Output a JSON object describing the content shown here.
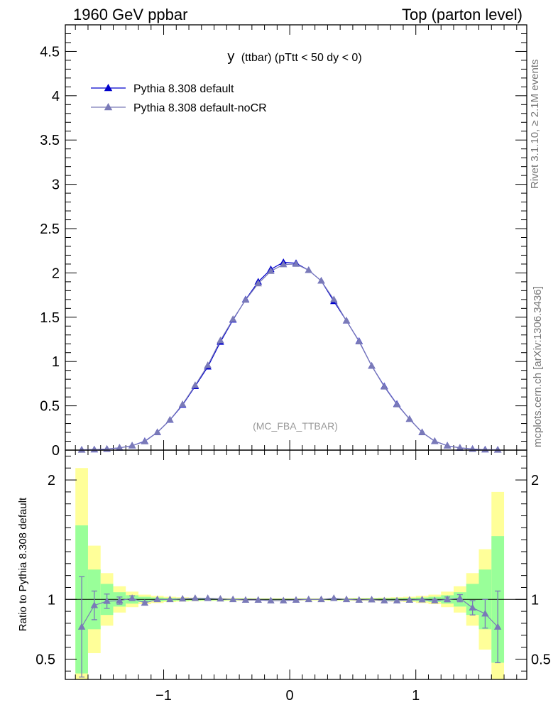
{
  "header": {
    "left": "1960 GeV ppbar",
    "right": "Top (parton level)"
  },
  "side_labels": {
    "rivet": "Rivet 3.1.10, ≥ 2.1M events",
    "mcplots": "mcplots.cern.ch [arXiv:1306.3436]"
  },
  "chart_data": [
    {
      "type": "line",
      "title": "y (ttbar) (pTtt < 50 dy < 0)",
      "title_main": "y",
      "title_rest": "(ttbar) (pTtt < 50 dy < 0)",
      "watermark": "(MC_FBA_TTBAR)",
      "xlim": [
        -1.78,
        1.88
      ],
      "ylim": [
        0,
        4.8
      ],
      "yticks": [
        0,
        0.5,
        1,
        1.5,
        2,
        2.5,
        3,
        3.5,
        4,
        4.5
      ],
      "ytick_labels": [
        "0",
        "0.5",
        "1",
        "1.5",
        "2",
        "2.5",
        "3",
        "3.5",
        "4",
        "4.5"
      ],
      "x": [
        -1.65,
        -1.55,
        -1.45,
        -1.35,
        -1.25,
        -1.15,
        -1.05,
        -0.95,
        -0.85,
        -0.75,
        -0.65,
        -0.55,
        -0.45,
        -0.35,
        -0.25,
        -0.15,
        -0.05,
        0.05,
        0.15,
        0.25,
        0.35,
        0.45,
        0.55,
        0.65,
        0.75,
        0.85,
        0.95,
        1.05,
        1.15,
        1.25,
        1.35,
        1.45,
        1.55,
        1.65
      ],
      "legend": "top-left",
      "series": [
        {
          "name": "Pythia 8.308 default",
          "color": "#0000cc",
          "values": [
            0.003,
            0.006,
            0.012,
            0.026,
            0.05,
            0.1,
            0.2,
            0.34,
            0.51,
            0.72,
            0.94,
            1.22,
            1.47,
            1.7,
            1.9,
            2.04,
            2.12,
            2.11,
            2.03,
            1.91,
            1.68,
            1.46,
            1.23,
            0.95,
            0.72,
            0.52,
            0.35,
            0.2,
            0.1,
            0.05,
            0.025,
            0.012,
            0.006,
            0.003
          ]
        },
        {
          "name": "Pythia 8.308 default-noCR",
          "color": "#7a7ab8",
          "values": [
            0.0023,
            0.0057,
            0.0118,
            0.0265,
            0.0505,
            0.097,
            0.2,
            0.341,
            0.517,
            0.732,
            0.957,
            1.237,
            1.477,
            1.695,
            1.88,
            2.02,
            2.095,
            2.1,
            2.03,
            1.91,
            1.7,
            1.46,
            1.225,
            0.95,
            0.715,
            0.515,
            0.35,
            0.2,
            0.1,
            0.05,
            0.025,
            0.0113,
            0.0053,
            0.0023
          ]
        }
      ]
    },
    {
      "type": "line",
      "ylabel": "Ratio to Pythia 8.308 default",
      "xlim": [
        -1.78,
        1.88
      ],
      "ylim": [
        0.33,
        2.25
      ],
      "xticks": [
        -1,
        0,
        1
      ],
      "xtick_labels": [
        "−1",
        "0",
        "1"
      ],
      "yticks": [
        0.5,
        1,
        2
      ],
      "ytick_labels": [
        "0.5",
        "1",
        "2"
      ],
      "x": [
        -1.65,
        -1.55,
        -1.45,
        -1.35,
        -1.25,
        -1.15,
        -1.05,
        -0.95,
        -0.85,
        -0.75,
        -0.65,
        -0.55,
        -0.45,
        -0.35,
        -0.25,
        -0.15,
        -0.05,
        0.05,
        0.15,
        0.25,
        0.35,
        0.45,
        0.55,
        0.65,
        0.75,
        0.85,
        0.95,
        1.05,
        1.15,
        1.25,
        1.35,
        1.45,
        1.55,
        1.65
      ],
      "band_colors": {
        "inner": "#99ff99",
        "outer": "#ffff99"
      },
      "band_inner": [
        0.62,
        0.25,
        0.13,
        0.06,
        0.035,
        0.022,
        0.016,
        0.012,
        0.01,
        0.009,
        0.008,
        0.007,
        0.006,
        0.006,
        0.005,
        0.005,
        0.005,
        0.005,
        0.005,
        0.005,
        0.006,
        0.006,
        0.007,
        0.008,
        0.009,
        0.01,
        0.012,
        0.016,
        0.022,
        0.035,
        0.06,
        0.13,
        0.25,
        0.53
      ],
      "band_outer": [
        1.1,
        0.45,
        0.22,
        0.11,
        0.065,
        0.04,
        0.03,
        0.022,
        0.018,
        0.015,
        0.013,
        0.012,
        0.011,
        0.01,
        0.009,
        0.009,
        0.009,
        0.009,
        0.009,
        0.009,
        0.01,
        0.011,
        0.012,
        0.013,
        0.015,
        0.018,
        0.022,
        0.03,
        0.04,
        0.065,
        0.11,
        0.22,
        0.42,
        0.9
      ],
      "series": [
        {
          "name": "Pythia 8.308 default-noCR",
          "color": "#7a7ab8",
          "values": [
            0.77,
            0.95,
            0.985,
            0.99,
            1.01,
            0.97,
            1.0,
            1.0,
            1.005,
            1.01,
            1.01,
            1.005,
            1.0,
            0.995,
            0.995,
            0.99,
            0.99,
            0.995,
            1.0,
            1.0,
            1.01,
            1.0,
            0.995,
            0.998,
            0.99,
            0.99,
            0.995,
            0.998,
            0.99,
            1.0,
            1.01,
            0.93,
            0.88,
            0.77
          ],
          "errors": [
            0.42,
            0.12,
            0.06,
            0.03,
            0.02,
            0.012,
            0.008,
            0.006,
            0.005,
            0.004,
            0.004,
            0.003,
            0.003,
            0.003,
            0.003,
            0.003,
            0.003,
            0.003,
            0.003,
            0.003,
            0.003,
            0.003,
            0.003,
            0.004,
            0.004,
            0.005,
            0.006,
            0.008,
            0.012,
            0.02,
            0.03,
            0.06,
            0.12,
            0.3
          ]
        }
      ]
    }
  ]
}
